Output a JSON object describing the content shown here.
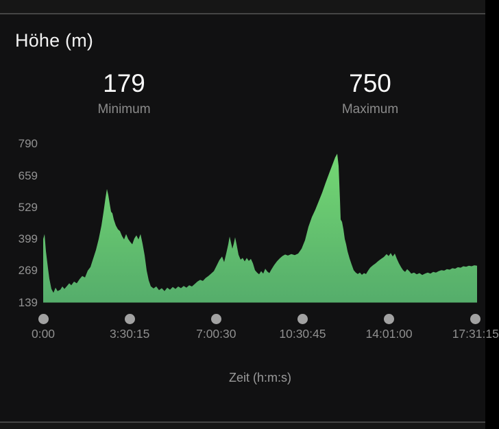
{
  "header": {
    "title": "Höhe (m)"
  },
  "stats": {
    "minimum": {
      "value": "179",
      "label": "Minimum"
    },
    "maximum": {
      "value": "750",
      "label": "Maximum"
    }
  },
  "axis_title": "Zeit (h:m:s)",
  "colors": {
    "background": "#111112",
    "divider": "#454545",
    "title_text": "#f2f2f2",
    "stat_value_text": "#fbfbfb",
    "stat_label_text": "#8b8b8b",
    "axis_text": "#919191",
    "slider_dot": "#a2a2a2",
    "area_gradient_top": "#76da74",
    "area_gradient_bottom": "#55ad6b"
  },
  "chart_data": {
    "type": "area",
    "title": "Höhe (m)",
    "xlabel": "Zeit (h:m:s)",
    "ylabel": "Höhe (m)",
    "y_unit": "m",
    "x_unit": "seconds (h:m:s)",
    "min": 179,
    "max": 750,
    "ylim": [
      139,
      790
    ],
    "yticks": [
      790,
      659,
      529,
      399,
      269,
      139
    ],
    "xticks": [
      {
        "label": "0:00",
        "t": 0
      },
      {
        "label": "3:30:15",
        "t": 12615
      },
      {
        "label": "7:00:30",
        "t": 25230
      },
      {
        "label": "10:30:45",
        "t": 37845
      },
      {
        "label": "14:01:00",
        "t": 50460
      },
      {
        "label": "17:31:15",
        "t": 63075
      }
    ],
    "grid": false,
    "legend": false,
    "fill_gradient": [
      "#76da74",
      "#55ad6b"
    ],
    "series": [
      {
        "name": "Höhe",
        "points": [
          [
            0,
            400
          ],
          [
            200,
            420
          ],
          [
            400,
            350
          ],
          [
            700,
            280
          ],
          [
            900,
            237
          ],
          [
            1200,
            195
          ],
          [
            1500,
            179
          ],
          [
            1800,
            200
          ],
          [
            2100,
            186
          ],
          [
            2500,
            192
          ],
          [
            2800,
            205
          ],
          [
            3100,
            195
          ],
          [
            3500,
            208
          ],
          [
            3800,
            218
          ],
          [
            4100,
            210
          ],
          [
            4500,
            225
          ],
          [
            4900,
            218
          ],
          [
            5300,
            235
          ],
          [
            5700,
            248
          ],
          [
            6100,
            242
          ],
          [
            6500,
            270
          ],
          [
            6900,
            285
          ],
          [
            7300,
            320
          ],
          [
            7700,
            355
          ],
          [
            8100,
            400
          ],
          [
            8500,
            455
          ],
          [
            8800,
            510
          ],
          [
            9100,
            570
          ],
          [
            9300,
            605
          ],
          [
            9500,
            580
          ],
          [
            9700,
            545
          ],
          [
            9900,
            512
          ],
          [
            10100,
            505
          ],
          [
            10300,
            480
          ],
          [
            10600,
            455
          ],
          [
            10900,
            440
          ],
          [
            11200,
            432
          ],
          [
            11500,
            412
          ],
          [
            11800,
            398
          ],
          [
            12100,
            420
          ],
          [
            12400,
            400
          ],
          [
            12700,
            388
          ],
          [
            13000,
            378
          ],
          [
            13300,
            402
          ],
          [
            13600,
            415
          ],
          [
            13900,
            398
          ],
          [
            14200,
            420
          ],
          [
            14500,
            380
          ],
          [
            14800,
            333
          ],
          [
            15100,
            270
          ],
          [
            15400,
            230
          ],
          [
            15700,
            206
          ],
          [
            16100,
            197
          ],
          [
            16500,
            205
          ],
          [
            16900,
            190
          ],
          [
            17300,
            198
          ],
          [
            17700,
            186
          ],
          [
            18100,
            200
          ],
          [
            18500,
            192
          ],
          [
            18900,
            203
          ],
          [
            19300,
            195
          ],
          [
            19700,
            205
          ],
          [
            20100,
            198
          ],
          [
            20500,
            207
          ],
          [
            20900,
            200
          ],
          [
            21300,
            210
          ],
          [
            21700,
            205
          ],
          [
            22100,
            215
          ],
          [
            22500,
            225
          ],
          [
            22900,
            232
          ],
          [
            23300,
            228
          ],
          [
            23700,
            240
          ],
          [
            24100,
            248
          ],
          [
            24500,
            258
          ],
          [
            24900,
            268
          ],
          [
            25300,
            290
          ],
          [
            25700,
            313
          ],
          [
            26100,
            328
          ],
          [
            26400,
            305
          ],
          [
            26700,
            340
          ],
          [
            27000,
            378
          ],
          [
            27200,
            410
          ],
          [
            27400,
            385
          ],
          [
            27600,
            360
          ],
          [
            27800,
            380
          ],
          [
            28000,
            407
          ],
          [
            28200,
            380
          ],
          [
            28500,
            335
          ],
          [
            28800,
            315
          ],
          [
            29100,
            322
          ],
          [
            29400,
            308
          ],
          [
            29700,
            322
          ],
          [
            30000,
            310
          ],
          [
            30300,
            318
          ],
          [
            30600,
            300
          ],
          [
            30900,
            272
          ],
          [
            31200,
            262
          ],
          [
            31500,
            255
          ],
          [
            31800,
            268
          ],
          [
            32100,
            258
          ],
          [
            32400,
            278
          ],
          [
            32700,
            266
          ],
          [
            33000,
            260
          ],
          [
            33300,
            275
          ],
          [
            33700,
            293
          ],
          [
            34100,
            308
          ],
          [
            34500,
            320
          ],
          [
            34900,
            330
          ],
          [
            35300,
            336
          ],
          [
            35700,
            332
          ],
          [
            36200,
            338
          ],
          [
            36700,
            334
          ],
          [
            37200,
            340
          ],
          [
            37700,
            360
          ],
          [
            38200,
            395
          ],
          [
            38700,
            450
          ],
          [
            39200,
            490
          ],
          [
            39700,
            520
          ],
          [
            40200,
            555
          ],
          [
            40700,
            590
          ],
          [
            41200,
            630
          ],
          [
            41700,
            668
          ],
          [
            42200,
            705
          ],
          [
            42600,
            735
          ],
          [
            42900,
            750
          ],
          [
            43100,
            700
          ],
          [
            43300,
            560
          ],
          [
            43400,
            480
          ],
          [
            43600,
            470
          ],
          [
            43800,
            440
          ],
          [
            44000,
            400
          ],
          [
            44200,
            378
          ],
          [
            44400,
            350
          ],
          [
            44700,
            320
          ],
          [
            45000,
            295
          ],
          [
            45300,
            272
          ],
          [
            45600,
            262
          ],
          [
            45900,
            256
          ],
          [
            46200,
            262
          ],
          [
            46500,
            253
          ],
          [
            46800,
            260
          ],
          [
            47100,
            256
          ],
          [
            47400,
            270
          ],
          [
            47700,
            282
          ],
          [
            48100,
            292
          ],
          [
            48500,
            300
          ],
          [
            48900,
            310
          ],
          [
            49300,
            318
          ],
          [
            49700,
            326
          ],
          [
            50100,
            338
          ],
          [
            50400,
            330
          ],
          [
            50700,
            342
          ],
          [
            51000,
            328
          ],
          [
            51300,
            340
          ],
          [
            51600,
            318
          ],
          [
            51900,
            300
          ],
          [
            52200,
            285
          ],
          [
            52500,
            272
          ],
          [
            52800,
            265
          ],
          [
            53100,
            276
          ],
          [
            53400,
            268
          ],
          [
            53700,
            258
          ],
          [
            54100,
            262
          ],
          [
            54500,
            255
          ],
          [
            54900,
            260
          ],
          [
            55300,
            252
          ],
          [
            55700,
            258
          ],
          [
            56100,
            262
          ],
          [
            56500,
            258
          ],
          [
            56900,
            265
          ],
          [
            57300,
            262
          ],
          [
            57700,
            268
          ],
          [
            58100,
            272
          ],
          [
            58500,
            270
          ],
          [
            58900,
            276
          ],
          [
            59300,
            274
          ],
          [
            59700,
            280
          ],
          [
            60100,
            278
          ],
          [
            60500,
            284
          ],
          [
            60900,
            282
          ],
          [
            61300,
            288
          ],
          [
            61700,
            286
          ],
          [
            62100,
            290
          ],
          [
            62500,
            288
          ],
          [
            62900,
            292
          ],
          [
            63300,
            290
          ]
        ]
      }
    ]
  }
}
